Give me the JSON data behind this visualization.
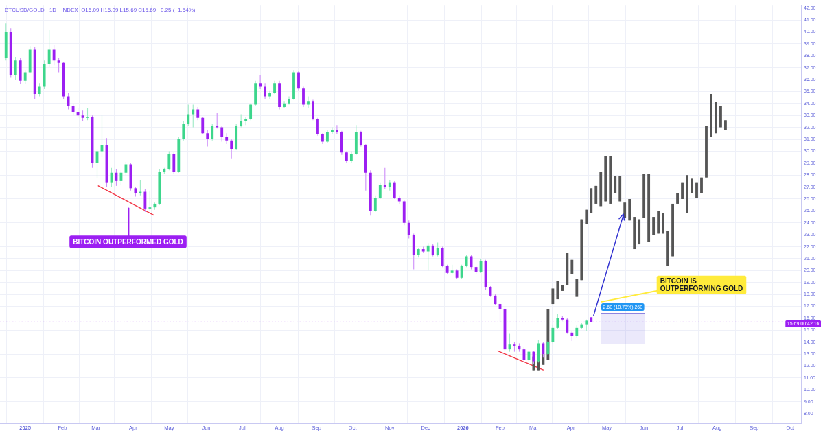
{
  "chart_data": {
    "type": "candlestick",
    "title": "BTCUSD/GOLD · 1D · INDEX  O16.09 H16.09 L15.69 C15.69 −0.25 (−1.54%)",
    "xlim": [
      "2024-12-11",
      "2026-10-10"
    ],
    "xticks": [
      {
        "value": "2025-01-01",
        "label": "2025"
      },
      {
        "value": "2025-02-01",
        "label": "Feb"
      },
      {
        "value": "2025-03-01",
        "label": "Mar"
      },
      {
        "value": "2025-04-01",
        "label": "Apr"
      },
      {
        "value": "2025-05-01",
        "label": "May"
      },
      {
        "value": "2025-06-01",
        "label": "Jun"
      },
      {
        "value": "2025-07-01",
        "label": "Jul"
      },
      {
        "value": "2025-08-01",
        "label": "Aug"
      },
      {
        "value": "2025-09-01",
        "label": "Sep"
      },
      {
        "value": "2025-10-01",
        "label": "Oct"
      },
      {
        "value": "2025-11-01",
        "label": "Nov"
      },
      {
        "value": "2025-12-01",
        "label": "Dec"
      },
      {
        "value": "2026-01-01",
        "label": "2026"
      },
      {
        "value": "2026-02-01",
        "label": "Feb"
      },
      {
        "value": "2026-03-01",
        "label": "Mar"
      },
      {
        "value": "2026-04-01",
        "label": "Apr"
      },
      {
        "value": "2026-05-01",
        "label": "May"
      },
      {
        "value": "2026-06-01",
        "label": "Jun"
      },
      {
        "value": "2026-07-01",
        "label": "Jul"
      },
      {
        "value": "2026-08-01",
        "label": "Aug"
      },
      {
        "value": "2026-09-01",
        "label": "Sep"
      },
      {
        "value": "2026-10-01",
        "label": "Oct"
      }
    ],
    "ylim": [
      7.2,
      42.2
    ],
    "yticks": [
      {
        "value": 8,
        "label": "8.00"
      },
      {
        "value": 9,
        "label": "9.00"
      },
      {
        "value": 10,
        "label": "10.00"
      },
      {
        "value": 11,
        "label": "11.00"
      },
      {
        "value": 12,
        "label": "12.00"
      },
      {
        "value": 13,
        "label": "13.00"
      },
      {
        "value": 14,
        "label": "14.00"
      },
      {
        "value": 15,
        "label": "15.00"
      },
      {
        "value": 16,
        "label": "16.00"
      },
      {
        "value": 17,
        "label": "17.00"
      },
      {
        "value": 18,
        "label": "18.00"
      },
      {
        "value": 19,
        "label": "19.00"
      },
      {
        "value": 20,
        "label": "20.00"
      },
      {
        "value": 21,
        "label": "21.00"
      },
      {
        "value": 22,
        "label": "22.00"
      },
      {
        "value": 23,
        "label": "23.00"
      },
      {
        "value": 24,
        "label": "24.00"
      },
      {
        "value": 25,
        "label": "25.00"
      },
      {
        "value": 26,
        "label": "26.00"
      },
      {
        "value": 27,
        "label": "27.00"
      },
      {
        "value": 28,
        "label": "28.00"
      },
      {
        "value": 29,
        "label": "29.00"
      },
      {
        "value": 30,
        "label": "30.00"
      },
      {
        "value": 31,
        "label": "31.00"
      },
      {
        "value": 32,
        "label": "32.00"
      },
      {
        "value": 33,
        "label": "33.00"
      },
      {
        "value": 34,
        "label": "34.00"
      },
      {
        "value": 35,
        "label": "35.00"
      },
      {
        "value": 36,
        "label": "36.00"
      },
      {
        "value": 37,
        "label": "37.00"
      },
      {
        "value": 38,
        "label": "38.00"
      },
      {
        "value": 39,
        "label": "39.00"
      },
      {
        "value": 40,
        "label": "40.00"
      },
      {
        "value": 41,
        "label": "41.00"
      },
      {
        "value": 42,
        "label": "42.00"
      }
    ],
    "grid": true,
    "series": [
      {
        "x": [
          "2024-12-16",
          "2024-12-20",
          "2024-12-24",
          "2024-12-28",
          "2025-01-01",
          "2025-01-05",
          "2025-01-09",
          "2025-01-13",
          "2025-01-17",
          "2025-01-21",
          "2025-01-25",
          "2025-01-29",
          "2025-02-02",
          "2025-02-06",
          "2025-02-10",
          "2025-02-14",
          "2025-02-18",
          "2025-02-22",
          "2025-02-26",
          "2025-03-02",
          "2025-03-06",
          "2025-03-10",
          "2025-03-14",
          "2025-03-18",
          "2025-03-22",
          "2025-03-26",
          "2025-03-30",
          "2025-04-03",
          "2025-04-07",
          "2025-04-11",
          "2025-04-15",
          "2025-04-19",
          "2025-04-23",
          "2025-04-27",
          "2025-05-01",
          "2025-05-05",
          "2025-05-09",
          "2025-05-13",
          "2025-05-17",
          "2025-05-21",
          "2025-05-25",
          "2025-05-29",
          "2025-06-02",
          "2025-06-06",
          "2025-06-10",
          "2025-06-14",
          "2025-06-18",
          "2025-06-22",
          "2025-06-26",
          "2025-06-30",
          "2025-07-04",
          "2025-07-08",
          "2025-07-12",
          "2025-07-16",
          "2025-07-20",
          "2025-07-24",
          "2025-07-28",
          "2025-08-01",
          "2025-08-05",
          "2025-08-09",
          "2025-08-13",
          "2025-08-17",
          "2025-08-21",
          "2025-08-25",
          "2025-08-29",
          "2025-09-02",
          "2025-09-06",
          "2025-09-10",
          "2025-09-14",
          "2025-09-18",
          "2025-09-22",
          "2025-09-26",
          "2025-09-30",
          "2025-10-04",
          "2025-10-08",
          "2025-10-12",
          "2025-10-16",
          "2025-10-20",
          "2025-10-24",
          "2025-10-28",
          "2025-11-01",
          "2025-11-05",
          "2025-11-09",
          "2025-11-13",
          "2025-11-17",
          "2025-11-21",
          "2025-11-25",
          "2025-11-29",
          "2025-12-03",
          "2025-12-07",
          "2025-12-11",
          "2025-12-15",
          "2025-12-19",
          "2025-12-23",
          "2025-12-27",
          "2025-12-31",
          "2026-01-04",
          "2026-01-08",
          "2026-01-12",
          "2026-01-16",
          "2026-01-20",
          "2026-01-24",
          "2026-01-28",
          "2026-02-01",
          "2026-02-05",
          "2026-02-09",
          "2026-02-13",
          "2026-02-17",
          "2026-02-21",
          "2026-02-25",
          "2026-03-01",
          "2026-03-05",
          "2026-03-09",
          "2026-03-13",
          "2026-03-17",
          "2026-03-21",
          "2026-03-25",
          "2026-03-29",
          "2026-04-02",
          "2026-04-06",
          "2026-04-10",
          "2026-04-14",
          "2026-04-18"
        ],
        "ohlc": [
          [
            37.8,
            40.7,
            37.6,
            40.0
          ],
          [
            40.0,
            40.3,
            36.2,
            36.4
          ],
          [
            36.4,
            37.9,
            36.0,
            37.6
          ],
          [
            37.6,
            37.8,
            35.6,
            35.9
          ],
          [
            35.9,
            36.8,
            35.6,
            36.6
          ],
          [
            36.6,
            38.8,
            36.5,
            38.5
          ],
          [
            38.5,
            38.7,
            34.4,
            34.8
          ],
          [
            34.8,
            35.7,
            34.6,
            35.4
          ],
          [
            35.4,
            37.6,
            35.2,
            37.3
          ],
          [
            37.3,
            40.2,
            37.1,
            38.5
          ],
          [
            38.5,
            38.9,
            37.2,
            37.6
          ],
          [
            37.6,
            37.8,
            36.6,
            37.4
          ],
          [
            37.4,
            37.5,
            34.4,
            34.6
          ],
          [
            34.6,
            34.9,
            33.5,
            33.8
          ],
          [
            33.8,
            34.0,
            33.0,
            33.3
          ],
          [
            33.3,
            33.6,
            32.8,
            33.0
          ],
          [
            33.0,
            33.4,
            32.5,
            32.8
          ],
          [
            32.8,
            33.6,
            32.6,
            32.9
          ],
          [
            32.9,
            33.0,
            28.6,
            29.0
          ],
          [
            29.0,
            30.2,
            27.7,
            30.0
          ],
          [
            30.0,
            33.0,
            29.5,
            30.5
          ],
          [
            30.5,
            31.1,
            27.0,
            27.4
          ],
          [
            27.4,
            28.6,
            27.0,
            28.2
          ],
          [
            28.2,
            28.5,
            27.1,
            27.5
          ],
          [
            27.5,
            28.4,
            27.2,
            28.2
          ],
          [
            28.2,
            29.1,
            28.0,
            28.9
          ],
          [
            28.9,
            29.0,
            26.7,
            26.9
          ],
          [
            26.9,
            27.0,
            26.2,
            26.5
          ],
          [
            26.5,
            27.6,
            26.3,
            26.6
          ],
          [
            26.6,
            26.8,
            24.9,
            25.2
          ],
          [
            25.2,
            26.7,
            25.0,
            25.3
          ],
          [
            25.3,
            25.7,
            25.1,
            25.6
          ],
          [
            25.6,
            28.5,
            25.5,
            28.3
          ],
          [
            28.3,
            28.6,
            28.1,
            28.5
          ],
          [
            28.5,
            30.0,
            28.4,
            29.8
          ],
          [
            29.8,
            29.9,
            28.1,
            28.3
          ],
          [
            28.3,
            31.2,
            28.2,
            31.0
          ],
          [
            31.0,
            32.5,
            30.9,
            32.3
          ],
          [
            32.3,
            33.9,
            32.1,
            33.1
          ],
          [
            33.1,
            33.9,
            32.0,
            33.5
          ],
          [
            33.5,
            33.7,
            32.6,
            32.8
          ],
          [
            32.8,
            32.9,
            31.4,
            31.5
          ],
          [
            31.5,
            31.8,
            30.4,
            31.0
          ],
          [
            31.0,
            32.3,
            30.9,
            32.1
          ],
          [
            32.1,
            33.2,
            31.9,
            32.0
          ],
          [
            32.0,
            32.1,
            30.8,
            31.2
          ],
          [
            31.2,
            31.5,
            30.6,
            30.9
          ],
          [
            30.9,
            31.0,
            29.4,
            30.2
          ],
          [
            30.2,
            32.3,
            30.1,
            32.1
          ],
          [
            32.1,
            33.1,
            32.0,
            32.5
          ],
          [
            32.5,
            32.9,
            32.2,
            32.7
          ],
          [
            32.7,
            34.0,
            32.6,
            33.9
          ],
          [
            33.9,
            35.9,
            33.8,
            35.7
          ],
          [
            35.7,
            36.4,
            35.2,
            35.4
          ],
          [
            35.4,
            35.7,
            34.4,
            34.6
          ],
          [
            34.6,
            35.1,
            34.4,
            34.9
          ],
          [
            34.9,
            35.9,
            34.8,
            35.7
          ],
          [
            35.7,
            35.9,
            33.5,
            33.7
          ],
          [
            33.7,
            34.2,
            33.6,
            34.0
          ],
          [
            34.0,
            34.6,
            33.9,
            34.4
          ],
          [
            34.4,
            36.8,
            34.3,
            36.6
          ],
          [
            36.6,
            36.7,
            35.1,
            35.3
          ],
          [
            35.3,
            35.4,
            33.7,
            33.9
          ],
          [
            33.9,
            34.6,
            33.6,
            34.2
          ],
          [
            34.2,
            34.3,
            32.6,
            32.7
          ],
          [
            32.7,
            32.8,
            31.3,
            31.4
          ],
          [
            31.4,
            31.5,
            30.6,
            30.8
          ],
          [
            30.8,
            31.8,
            30.7,
            31.6
          ],
          [
            31.6,
            32.0,
            31.4,
            31.8
          ],
          [
            31.8,
            32.2,
            31.4,
            31.6
          ],
          [
            31.6,
            31.7,
            29.7,
            29.9
          ],
          [
            29.9,
            30.0,
            29.0,
            29.2
          ],
          [
            29.2,
            30.0,
            29.0,
            29.8
          ],
          [
            29.8,
            32.2,
            29.7,
            31.6
          ],
          [
            31.6,
            31.7,
            30.4,
            30.5
          ],
          [
            30.5,
            30.6,
            26.7,
            28.2
          ],
          [
            28.2,
            28.4,
            24.6,
            25.0
          ],
          [
            25.0,
            26.3,
            24.9,
            26.1
          ],
          [
            26.1,
            27.4,
            26.0,
            27.2
          ],
          [
            27.2,
            28.6,
            26.8,
            27.0
          ],
          [
            27.0,
            27.6,
            26.7,
            27.4
          ],
          [
            27.4,
            27.5,
            26.0,
            26.1
          ],
          [
            26.1,
            26.3,
            25.6,
            25.8
          ],
          [
            25.8,
            25.9,
            23.8,
            24.0
          ],
          [
            24.0,
            24.2,
            22.7,
            23.0
          ],
          [
            23.0,
            23.1,
            20.1,
            21.3
          ],
          [
            21.3,
            21.9,
            21.1,
            21.8
          ],
          [
            21.8,
            22.0,
            21.5,
            21.6
          ],
          [
            21.6,
            22.3,
            20.0,
            22.1
          ],
          [
            22.1,
            22.2,
            21.2,
            21.3
          ],
          [
            21.3,
            22.35,
            21.2,
            21.9
          ],
          [
            21.9,
            22.0,
            20.3,
            20.4
          ],
          [
            20.4,
            20.5,
            19.7,
            19.8
          ],
          [
            19.8,
            20.5,
            19.7,
            20.0
          ],
          [
            20.0,
            20.1,
            19.3,
            19.4
          ],
          [
            19.4,
            20.5,
            19.3,
            20.4
          ],
          [
            20.4,
            21.3,
            20.3,
            21.2
          ],
          [
            21.2,
            21.3,
            20.1,
            20.3
          ],
          [
            20.3,
            20.4,
            19.7,
            19.9
          ],
          [
            19.9,
            21.0,
            19.8,
            20.8
          ],
          [
            20.8,
            20.9,
            18.4,
            18.6
          ],
          [
            18.6,
            18.7,
            17.8,
            17.9
          ],
          [
            17.9,
            18.0,
            17.1,
            17.2
          ],
          [
            17.2,
            17.3,
            15.7,
            16.8
          ],
          [
            16.8,
            16.9,
            13.2,
            13.4
          ],
          [
            13.4,
            14.7,
            13.2,
            13.8
          ],
          [
            13.8,
            14.0,
            13.2,
            13.7
          ],
          [
            13.7,
            13.9,
            13.2,
            13.4
          ],
          [
            13.4,
            13.6,
            12.3,
            12.5
          ],
          [
            12.5,
            13.3,
            12.4,
            13.2
          ],
          [
            13.2,
            13.3,
            12.2,
            12.4
          ],
          [
            12.4,
            14.2,
            12.3,
            13.9
          ],
          [
            13.9,
            14.0,
            12.7,
            13.0
          ],
          [
            13.0,
            14.1,
            12.9,
            14.0
          ],
          [
            14.0,
            15.5,
            13.9,
            15.2
          ],
          [
            15.2,
            16.4,
            15.1,
            16.0
          ],
          [
            16.0,
            16.2,
            15.8,
            15.9
          ],
          [
            15.9,
            16.0,
            14.7,
            14.8
          ],
          [
            14.8,
            14.9,
            14.1,
            14.5
          ],
          [
            14.5,
            15.4,
            14.4,
            15.2
          ],
          [
            15.2,
            15.6,
            15.1,
            15.5
          ],
          [
            15.5,
            15.9,
            14.9,
            15.8
          ],
          [
            16.09,
            16.09,
            15.69,
            15.69
          ]
        ],
        "colors": [
          "#3dd68c",
          "#9c1ff2",
          "#3dd68c",
          "#9c1ff2",
          "#3dd68c",
          "#3dd68c",
          "#9c1ff2",
          "#3dd68c",
          "#3dd68c",
          "#3dd68c",
          "#9c1ff2",
          "#9c1ff2",
          "#9c1ff2",
          "#9c1ff2",
          "#9c1ff2",
          "#9c1ff2",
          "#9c1ff2",
          "#3dd68c",
          "#9c1ff2",
          "#3dd68c",
          "#3dd68c",
          "#9c1ff2",
          "#3dd68c",
          "#9c1ff2",
          "#3dd68c",
          "#3dd68c",
          "#9c1ff2",
          "#9c1ff2",
          "#3dd68c",
          "#9c1ff2",
          "#3dd68c",
          "#3dd68c",
          "#3dd68c",
          "#3dd68c",
          "#3dd68c",
          "#9c1ff2",
          "#3dd68c",
          "#3dd68c",
          "#3dd68c",
          "#3dd68c",
          "#9c1ff2",
          "#9c1ff2",
          "#9c1ff2",
          "#3dd68c",
          "#9c1ff2",
          "#9c1ff2",
          "#9c1ff2",
          "#9c1ff2",
          "#3dd68c",
          "#3dd68c",
          "#3dd68c",
          "#3dd68c",
          "#3dd68c",
          "#9c1ff2",
          "#9c1ff2",
          "#3dd68c",
          "#3dd68c",
          "#9c1ff2",
          "#3dd68c",
          "#3dd68c",
          "#3dd68c",
          "#9c1ff2",
          "#9c1ff2",
          "#3dd68c",
          "#9c1ff2",
          "#9c1ff2",
          "#9c1ff2",
          "#3dd68c",
          "#3dd68c",
          "#9c1ff2",
          "#9c1ff2",
          "#9c1ff2",
          "#3dd68c",
          "#3dd68c",
          "#9c1ff2",
          "#9c1ff2",
          "#9c1ff2",
          "#3dd68c",
          "#3dd68c",
          "#9c1ff2",
          "#3dd68c",
          "#9c1ff2",
          "#9c1ff2",
          "#9c1ff2",
          "#9c1ff2",
          "#9c1ff2",
          "#3dd68c",
          "#9c1ff2",
          "#3dd68c",
          "#9c1ff2",
          "#3dd68c",
          "#9c1ff2",
          "#9c1ff2",
          "#3dd68c",
          "#9c1ff2",
          "#3dd68c",
          "#3dd68c",
          "#9c1ff2",
          "#9c1ff2",
          "#3dd68c",
          "#9c1ff2",
          "#9c1ff2",
          "#9c1ff2",
          "#9c1ff2",
          "#9c1ff2",
          "#3dd68c",
          "#9c1ff2",
          "#9c1ff2",
          "#9c1ff2",
          "#3dd68c",
          "#9c1ff2",
          "#3dd68c",
          "#9c1ff2",
          "#3dd68c",
          "#3dd68c",
          "#3dd68c",
          "#9c1ff2",
          "#9c1ff2",
          "#9c1ff2",
          "#3dd68c",
          "#3dd68c",
          "#3dd68c",
          "#9c1ff2"
        ]
      },
      {
        "color": "#555555",
        "x": [
          "2026-03-01",
          "2026-03-05",
          "2026-03-09",
          "2026-03-13",
          "2026-03-17",
          "2026-03-21",
          "2026-03-25",
          "2026-03-29",
          "2026-04-02",
          "2026-04-06",
          "2026-04-10",
          "2026-04-14",
          "2026-04-18",
          "2026-04-22",
          "2026-04-26",
          "2026-04-30",
          "2026-05-04",
          "2026-05-08",
          "2026-05-12",
          "2026-05-16",
          "2026-05-20",
          "2026-05-24",
          "2026-05-28",
          "2026-06-01",
          "2026-06-05",
          "2026-06-09",
          "2026-06-13",
          "2026-06-17",
          "2026-06-21",
          "2026-06-25",
          "2026-06-29",
          "2026-07-03",
          "2026-07-07",
          "2026-07-11",
          "2026-07-15",
          "2026-07-19",
          "2026-07-23",
          "2026-07-27",
          "2026-07-31",
          "2026-08-04",
          "2026-08-08"
        ],
        "ohlc": [
          [
            11.65,
            12.8,
            11.65,
            12.8
          ],
          [
            11.65,
            12.7,
            11.65,
            12.7
          ],
          [
            12.1,
            13.0,
            12.1,
            13.0
          ],
          [
            12.5,
            16.8,
            12.5,
            16.8
          ],
          [
            17.2,
            18.5,
            17.2,
            18.5
          ],
          [
            17.6,
            19.1,
            17.6,
            19.1
          ],
          [
            18.3,
            18.8,
            18.3,
            18.8
          ],
          [
            18.8,
            21.5,
            18.8,
            21.5
          ],
          [
            19.7,
            20.9,
            19.7,
            20.9
          ],
          [
            17.8,
            19.3,
            17.8,
            19.3
          ],
          [
            19.2,
            24.3,
            19.2,
            24.3
          ],
          [
            23.9,
            25.1,
            23.9,
            25.1
          ],
          [
            24.8,
            26.9,
            24.8,
            26.9
          ],
          [
            25.6,
            27.1,
            25.6,
            27.1
          ],
          [
            25.4,
            28.3,
            25.4,
            28.3
          ],
          [
            25.8,
            29.6,
            25.8,
            29.6
          ],
          [
            25.6,
            29.6,
            25.6,
            29.6
          ],
          [
            26.5,
            27.9,
            26.5,
            27.9
          ],
          [
            25.8,
            27.9,
            25.8,
            27.9
          ],
          [
            24.4,
            25.7,
            24.4,
            25.7
          ],
          [
            24.2,
            26.0,
            24.2,
            26.0
          ],
          [
            21.8,
            24.5,
            21.8,
            24.5
          ],
          [
            22.2,
            24.3,
            22.2,
            24.3
          ],
          [
            24.4,
            28.1,
            24.4,
            28.1
          ],
          [
            22.4,
            28.1,
            22.4,
            28.1
          ],
          [
            23.0,
            24.5,
            23.0,
            24.5
          ],
          [
            23.1,
            25.0,
            23.1,
            25.0
          ],
          [
            23.1,
            24.8,
            23.1,
            24.8
          ],
          [
            20.4,
            23.3,
            20.4,
            23.3
          ],
          [
            21.2,
            25.6,
            21.2,
            25.6
          ],
          [
            25.6,
            26.5,
            25.6,
            26.5
          ],
          [
            26.0,
            27.4,
            26.0,
            27.4
          ],
          [
            24.8,
            28.0,
            24.8,
            28.0
          ],
          [
            26.5,
            27.7,
            26.5,
            27.7
          ],
          [
            26.1,
            27.4,
            26.1,
            27.4
          ],
          [
            26.5,
            27.8,
            26.5,
            27.8
          ],
          [
            27.8,
            32.1,
            27.8,
            32.1
          ],
          [
            31.2,
            34.8,
            31.2,
            34.8
          ],
          [
            31.5,
            34.1,
            31.5,
            34.1
          ],
          [
            32.0,
            33.8,
            32.0,
            33.8
          ],
          [
            31.8,
            32.6,
            31.8,
            32.6
          ]
        ]
      },
      {
        "type": "line",
        "color": "#f23645",
        "x": [
          "2025-03-03",
          "2025-04-18"
        ],
        "values": [
          27.1,
          24.65
        ]
      },
      {
        "type": "line",
        "color": "#f23645",
        "x": [
          "2026-01-30",
          "2026-03-09"
        ],
        "values": [
          13.27,
          11.68
        ]
      },
      {
        "type": "line",
        "color": "#2f2fd0",
        "x": [
          "2026-04-20",
          "2026-05-15"
        ],
        "values": [
          16.23,
          24.72
        ]
      }
    ],
    "ref_lines": [
      {
        "axis": "y",
        "value": 15.69,
        "label": "15.69\n00:42:16",
        "color": "#9c1ff2",
        "line_style": "dotted"
      }
    ],
    "annotations": [
      "BITCOIN OUTPERFORMED GOLD",
      "BITCOIN IS\nOUTPERFORMING GOLD",
      "2.60 (18.78%) 260"
    ]
  }
}
